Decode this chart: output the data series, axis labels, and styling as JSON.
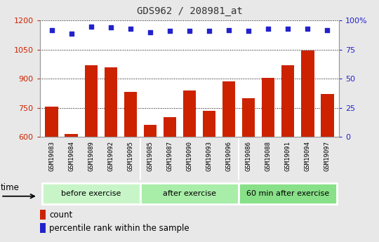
{
  "title": "GDS962 / 208981_at",
  "categories": [
    "GSM19083",
    "GSM19084",
    "GSM19089",
    "GSM19092",
    "GSM19095",
    "GSM19085",
    "GSM19087",
    "GSM19090",
    "GSM19093",
    "GSM19096",
    "GSM19086",
    "GSM19088",
    "GSM19091",
    "GSM19094",
    "GSM19097"
  ],
  "bar_values": [
    755,
    615,
    970,
    960,
    830,
    660,
    700,
    840,
    735,
    885,
    800,
    905,
    970,
    1045,
    820
  ],
  "dot_values": [
    92,
    89,
    95,
    94,
    93,
    90,
    91,
    91,
    91,
    92,
    91,
    93,
    93,
    93,
    92
  ],
  "groups": [
    {
      "label": "before exercise",
      "start": 0,
      "end": 5,
      "color": "#c8f5c8"
    },
    {
      "label": "after exercise",
      "start": 5,
      "end": 10,
      "color": "#a8eda8"
    },
    {
      "label": "60 min after exercise",
      "start": 10,
      "end": 15,
      "color": "#88e088"
    }
  ],
  "ylim_left": [
    600,
    1200
  ],
  "ylim_right": [
    0,
    100
  ],
  "yticks_left": [
    600,
    750,
    900,
    1050,
    1200
  ],
  "yticks_right": [
    0,
    25,
    50,
    75,
    100
  ],
  "bar_color": "#cc2200",
  "dot_color": "#2222cc",
  "title_color": "#333333",
  "left_axis_color": "#cc2200",
  "right_axis_color": "#2222cc",
  "background_color": "#e8e8e8",
  "plot_bg": "#ffffff",
  "xtick_bg": "#d0d0d0",
  "legend_count_label": "count",
  "legend_pct_label": "percentile rank within the sample",
  "time_label": "time",
  "dot_scale_min": 85,
  "dot_scale_max": 100
}
